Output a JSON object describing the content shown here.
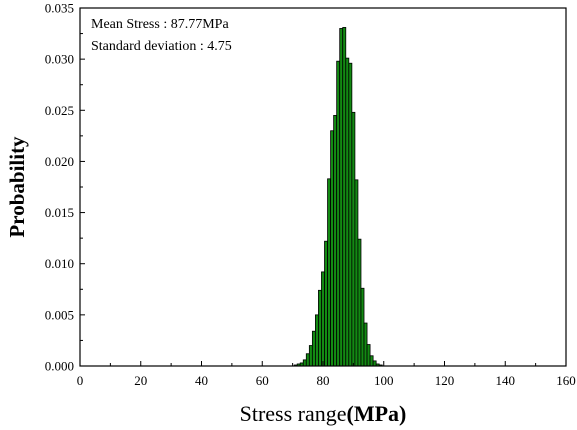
{
  "chart_data": {
    "type": "bar",
    "xlabel_main": "Stress range",
    "xlabel_unit": "(MPa)",
    "ylabel": "Probability",
    "xlim": [
      0,
      160
    ],
    "ylim": [
      0,
      0.035
    ],
    "xticks": [
      "0",
      "20",
      "40",
      "60",
      "80",
      "100",
      "120",
      "140",
      "160"
    ],
    "yticks": [
      "0.000",
      "0.005",
      "0.010",
      "0.015",
      "0.020",
      "0.025",
      "0.030",
      "0.035"
    ],
    "bar_color": "#138a13",
    "annotations": [
      "Mean Stress : 87.77MPa",
      "Standard deviation : 4.75"
    ],
    "bin_width": 1,
    "bars": [
      {
        "x": 71,
        "y": 0.0001
      },
      {
        "x": 72,
        "y": 0.0002
      },
      {
        "x": 73,
        "y": 0.0003
      },
      {
        "x": 74,
        "y": 0.0006
      },
      {
        "x": 75,
        "y": 0.0012
      },
      {
        "x": 76,
        "y": 0.002
      },
      {
        "x": 77,
        "y": 0.0034
      },
      {
        "x": 78,
        "y": 0.005
      },
      {
        "x": 79,
        "y": 0.0074
      },
      {
        "x": 80,
        "y": 0.0092
      },
      {
        "x": 81,
        "y": 0.0122
      },
      {
        "x": 82,
        "y": 0.0183
      },
      {
        "x": 83,
        "y": 0.023
      },
      {
        "x": 84,
        "y": 0.0245
      },
      {
        "x": 85,
        "y": 0.0298
      },
      {
        "x": 86,
        "y": 0.033
      },
      {
        "x": 87,
        "y": 0.0331
      },
      {
        "x": 88,
        "y": 0.0301
      },
      {
        "x": 89,
        "y": 0.0296
      },
      {
        "x": 90,
        "y": 0.0248
      },
      {
        "x": 91,
        "y": 0.0182
      },
      {
        "x": 92,
        "y": 0.0124
      },
      {
        "x": 93,
        "y": 0.0076
      },
      {
        "x": 94,
        "y": 0.0042
      },
      {
        "x": 95,
        "y": 0.0021
      },
      {
        "x": 96,
        "y": 0.001
      },
      {
        "x": 97,
        "y": 0.0005
      },
      {
        "x": 98,
        "y": 0.0002
      },
      {
        "x": 99,
        "y": 0.0001
      }
    ]
  }
}
